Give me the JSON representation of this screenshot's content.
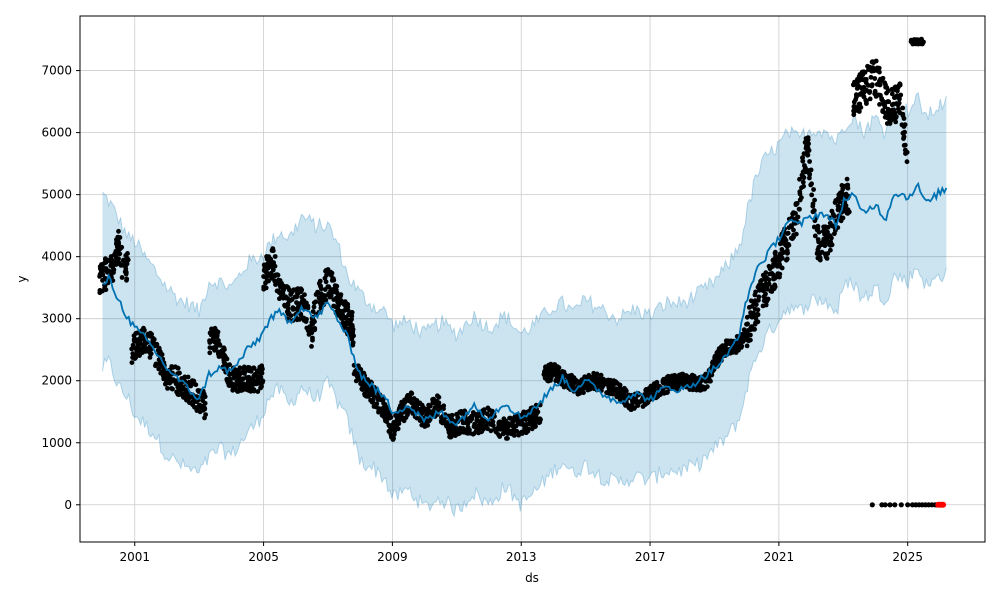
{
  "chart_data": {
    "type": "line",
    "xlabel": "ds",
    "ylabel": "y",
    "xlim": [
      1999.3,
      2027.4
    ],
    "ylim": [
      -600,
      7880
    ],
    "grid": true,
    "x_ticks": [
      2001,
      2005,
      2009,
      2013,
      2017,
      2021,
      2025
    ],
    "x_tick_labels": [
      "2001",
      "2005",
      "2009",
      "2013",
      "2017",
      "2021",
      "2025"
    ],
    "y_ticks": [
      0,
      1000,
      2000,
      3000,
      4000,
      5000,
      6000,
      7000
    ],
    "y_tick_labels": [
      "0",
      "1000",
      "2000",
      "3000",
      "4000",
      "5000",
      "6000",
      "7000"
    ],
    "colors": {
      "forecast": "#0072B2",
      "interval_fill": "#0072B2",
      "observed": "#000000",
      "highlight": "#ff0000"
    },
    "forecast": {
      "x": [
        2000.0,
        2000.2,
        2000.5,
        2000.8,
        2001.0,
        2001.3,
        2001.6,
        2002.0,
        2002.4,
        2002.8,
        2003.0,
        2003.3,
        2003.6,
        2004.0,
        2004.5,
        2004.9,
        2005.2,
        2005.5,
        2005.8,
        2006.2,
        2006.6,
        2007.0,
        2007.3,
        2007.6,
        2008.0,
        2008.4,
        2008.8,
        2009.0,
        2009.5,
        2010.0,
        2010.5,
        2011.0,
        2011.5,
        2012.0,
        2012.5,
        2013.0,
        2013.5,
        2014.0,
        2014.3,
        2014.6,
        2015.0,
        2015.5,
        2016.0,
        2016.5,
        2017.0,
        2017.5,
        2018.0,
        2018.5,
        2019.0,
        2019.4,
        2019.8,
        2020.0,
        2020.3,
        2020.6,
        2021.0,
        2021.3,
        2021.6,
        2022.0,
        2022.4,
        2022.8,
        2023.0,
        2023.3,
        2023.6,
        2024.0,
        2024.3,
        2024.6,
        2025.0,
        2025.3,
        2025.6,
        2026.0,
        2026.2
      ],
      "y": [
        3550,
        3650,
        3300,
        3000,
        2850,
        2700,
        2500,
        2200,
        2000,
        1800,
        1700,
        2100,
        2200,
        2150,
        2500,
        2700,
        3000,
        3100,
        2950,
        3200,
        3000,
        3250,
        3000,
        2700,
        2100,
        1900,
        1700,
        1500,
        1600,
        1350,
        1500,
        1300,
        1600,
        1400,
        1650,
        1400,
        1600,
        1900,
        2050,
        1850,
        2000,
        1800,
        1650,
        1800,
        1700,
        1900,
        1850,
        2000,
        2200,
        2400,
        2800,
        3300,
        3800,
        4000,
        4300,
        4600,
        4500,
        4650,
        4700,
        4500,
        4900,
        5000,
        4700,
        4850,
        4600,
        5050,
        4950,
        5150,
        4850,
        5050,
        5080
      ]
    },
    "interval": {
      "upper": [
        5000,
        4900,
        4600,
        4300,
        4250,
        4000,
        3800,
        3500,
        3300,
        3200,
        3100,
        3600,
        3600,
        3500,
        3900,
        4000,
        4200,
        4400,
        4300,
        4650,
        4500,
        4500,
        4200,
        3700,
        3400,
        3200,
        3100,
        2900,
        2950,
        2750,
        2950,
        2750,
        3050,
        2850,
        3050,
        2750,
        2950,
        3200,
        3250,
        3100,
        3300,
        3150,
        3000,
        3150,
        3050,
        3250,
        3250,
        3400,
        3600,
        3850,
        4200,
        4700,
        5300,
        5600,
        5800,
        6000,
        5900,
        6050,
        6050,
        5850,
        6100,
        6300,
        6000,
        6250,
        6000,
        6450,
        6350,
        6550,
        6250,
        6450,
        6480
      ],
      "lower": [
        2200,
        2300,
        1900,
        1700,
        1450,
        1300,
        1150,
        800,
        650,
        550,
        500,
        750,
        900,
        800,
        1150,
        1400,
        1750,
        1850,
        1600,
        1900,
        1700,
        1950,
        1650,
        1350,
        700,
        600,
        400,
        100,
        250,
        -50,
        100,
        -100,
        200,
        0,
        300,
        0,
        250,
        550,
        700,
        500,
        650,
        450,
        350,
        450,
        400,
        550,
        550,
        650,
        900,
        1100,
        1400,
        1900,
        2400,
        2700,
        3000,
        3200,
        3100,
        3300,
        3300,
        3100,
        3500,
        3600,
        3300,
        3500,
        3300,
        3700,
        3600,
        3850,
        3500,
        3700,
        3750
      ]
    },
    "observed_segments": [
      {
        "x": [
          1999.9,
          2000.3,
          2000.5,
          2000.6,
          2000.8
        ],
        "y": [
          3650,
          3800,
          4200,
          3900,
          3800
        ],
        "spread": 260
      },
      {
        "x": [
          2000.9,
          2001.3,
          2001.7,
          2002.0,
          2002.5,
          2002.8,
          2003.0,
          2003.2
        ],
        "y": [
          2500,
          2700,
          2400,
          2100,
          1950,
          1800,
          1700,
          1600
        ],
        "spread": 220
      },
      {
        "x": [
          2003.3,
          2003.5,
          2003.8,
          2004.0,
          2004.4,
          2004.8,
          2005.0
        ],
        "y": [
          2600,
          2700,
          2300,
          2000,
          2050,
          2000,
          2100
        ],
        "spread": 200
      },
      {
        "x": [
          2005.0,
          2005.3,
          2005.6,
          2005.9,
          2006.2,
          2006.4
        ],
        "y": [
          3700,
          3900,
          3300,
          3200,
          3250,
          3000
        ],
        "spread": 260
      },
      {
        "x": [
          2006.4,
          2006.7,
          2007.0,
          2007.4,
          2007.8
        ],
        "y": [
          2600,
          3300,
          3600,
          3200,
          2800
        ],
        "spread": 260
      },
      {
        "x": [
          2007.8,
          2008.2,
          2008.5,
          2008.8,
          2009.0,
          2009.3,
          2009.6,
          2010.0,
          2010.4,
          2010.8,
          2011.2,
          2011.6,
          2012.0,
          2012.4,
          2012.8,
          2013.2,
          2013.6
        ],
        "y": [
          2200,
          1900,
          1700,
          1500,
          1150,
          1500,
          1650,
          1400,
          1600,
          1250,
          1350,
          1300,
          1400,
          1200,
          1250,
          1350,
          1500
        ],
        "spread": 180
      },
      {
        "x": [
          2013.7,
          2014.0,
          2014.4,
          2014.8,
          2015.2,
          2015.6,
          2016.0,
          2016.4,
          2016.8,
          2017.2,
          2017.6,
          2018.0,
          2018.4,
          2018.8,
          2019.0,
          2019.4,
          2019.8,
          2020.0
        ],
        "y": [
          2100,
          2150,
          2000,
          1900,
          2000,
          1950,
          1850,
          1650,
          1700,
          1850,
          1950,
          2000,
          1950,
          2000,
          2300,
          2550,
          2600,
          2800
        ],
        "spread": 130
      },
      {
        "x": [
          2020.0,
          2020.3,
          2020.6,
          2020.9,
          2021.2,
          2021.5,
          2021.7,
          2021.9,
          2022.2,
          2022.5,
          2022.8,
          2023.0,
          2023.2
        ],
        "y": [
          2800,
          3200,
          3500,
          3800,
          4200,
          4500,
          5200,
          5800,
          4200,
          4200,
          4700,
          4900,
          5000
        ],
        "spread": 300
      },
      {
        "x": [
          2023.3,
          2023.6,
          2024.0,
          2024.4,
          2024.8,
          2025.0
        ],
        "y": [
          6500,
          6700,
          6900,
          6400,
          6500,
          5600
        ],
        "spread": 300
      },
      {
        "x": [
          2025.1,
          2025.5
        ],
        "y": [
          7460,
          7470
        ],
        "spread": 40
      }
    ],
    "zero_points": {
      "x": [
        2023.9,
        2024.2,
        2024.3,
        2024.45,
        2024.6,
        2024.8,
        2025.0,
        2025.15,
        2025.25,
        2025.35,
        2025.45,
        2025.55,
        2025.65,
        2025.75,
        2025.85,
        2025.9
      ],
      "y": 0
    },
    "highlight_points": {
      "x": [
        2025.95,
        2026.0,
        2026.05,
        2026.1
      ],
      "y": 0
    }
  }
}
